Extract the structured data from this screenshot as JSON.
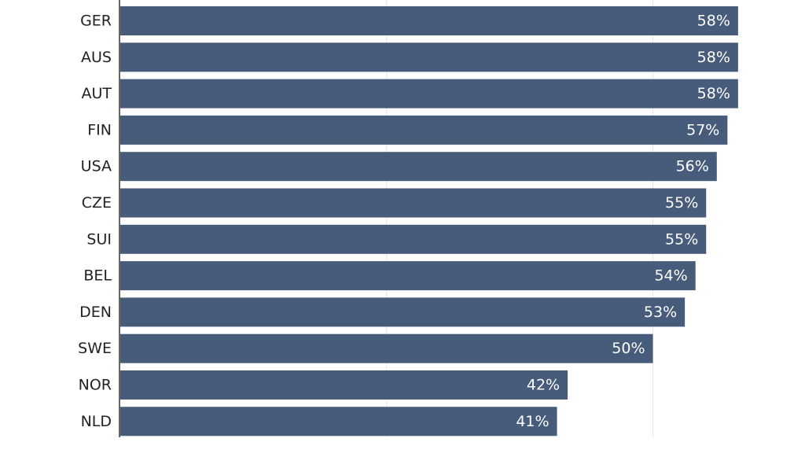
{
  "chart_data": {
    "type": "bar",
    "orientation": "horizontal",
    "categories": [
      "GER",
      "AUS",
      "AUT",
      "FIN",
      "USA",
      "CZE",
      "SUI",
      "BEL",
      "DEN",
      "SWE",
      "NOR",
      "NLD"
    ],
    "values": [
      58,
      58,
      58,
      57,
      56,
      55,
      55,
      54,
      53,
      50,
      42,
      41
    ],
    "value_labels": [
      "58%",
      "58%",
      "58%",
      "57%",
      "56%",
      "55%",
      "55%",
      "54%",
      "53%",
      "50%",
      "42%",
      "41%"
    ],
    "value_unit": "%",
    "xlim": [
      0,
      60
    ],
    "grid": true,
    "title": "",
    "xlabel": "",
    "ylabel": "",
    "bar_color": "#475b7a",
    "value_label_color": "#ffffff",
    "category_label_color": "#222222"
  }
}
